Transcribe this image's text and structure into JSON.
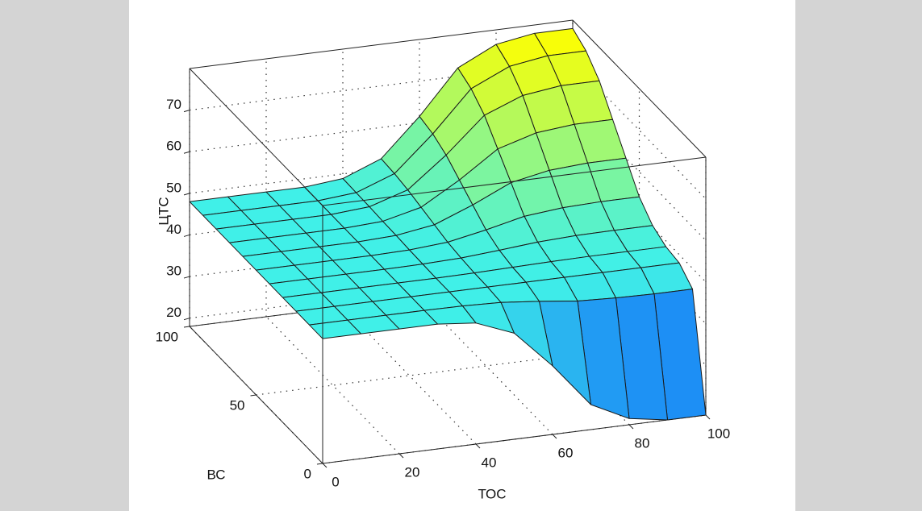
{
  "chart_data": {
    "type": "surface",
    "xlabel": "ТОС",
    "ylabel": "ВС",
    "zlabel": "ЦТС",
    "x": [
      0,
      10,
      20,
      30,
      40,
      50,
      60,
      70,
      80,
      90,
      100
    ],
    "y": [
      0,
      10,
      20,
      30,
      40,
      50,
      60,
      70,
      80,
      90,
      100
    ],
    "z": [
      [
        48,
        48,
        48,
        48,
        47.1,
        43.5,
        34.5,
        24,
        19.5,
        18,
        18
      ],
      [
        48,
        48,
        48,
        48,
        47.9,
        47.6,
        46.7,
        45.6,
        45.2,
        45,
        45
      ],
      [
        48,
        48,
        48,
        48,
        48,
        48,
        48,
        48,
        48,
        48,
        48
      ],
      [
        48,
        48,
        48,
        48,
        48,
        48.1,
        48.3,
        48.5,
        48.6,
        48.6,
        48.6
      ],
      [
        48,
        48,
        48,
        48,
        48.1,
        48.4,
        49.1,
        49.9,
        50.3,
        50.4,
        50.4
      ],
      [
        48,
        48,
        48,
        48,
        48.2,
        48.9,
        50.7,
        52.8,
        53.7,
        54,
        54
      ],
      [
        48,
        48,
        48,
        48,
        48.4,
        49.8,
        53.4,
        57.6,
        59.4,
        60,
        60
      ],
      [
        48,
        48,
        48,
        48,
        48.5,
        50.7,
        56.1,
        62.4,
        65.1,
        66,
        66
      ],
      [
        48,
        48,
        48,
        48,
        48.7,
        51.6,
        58.8,
        67.2,
        70.8,
        72,
        72
      ],
      [
        48,
        48,
        48,
        48,
        48.8,
        52.2,
        60.6,
        70.3,
        74.5,
        75.9,
        75.9
      ],
      [
        48,
        48,
        48,
        48,
        48.9,
        52.5,
        61.5,
        72,
        76.5,
        78,
        78
      ]
    ],
    "xlim": [
      0,
      100
    ],
    "ylim": [
      0,
      100
    ],
    "zlim": [
      18,
      80
    ],
    "xticks": [
      0,
      20,
      40,
      60,
      80,
      100
    ],
    "yticks": [
      0,
      50,
      100
    ],
    "zticks": [
      20,
      30,
      40,
      50,
      60,
      70
    ],
    "grid": true,
    "colormap": [
      "#0040ff",
      "#40f0e8",
      "#ffff00"
    ]
  }
}
